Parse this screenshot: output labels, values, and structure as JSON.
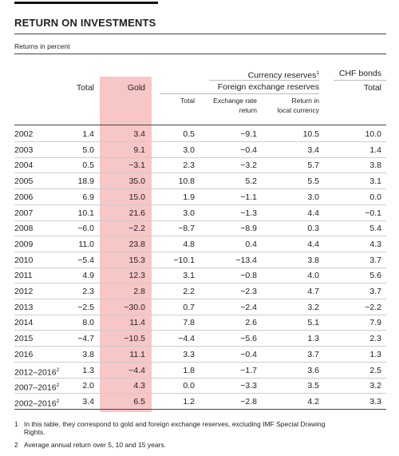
{
  "header": {
    "title": "RETURN ON INVESTMENTS",
    "subtitle": "Returns in percent"
  },
  "table": {
    "group_headers": {
      "currency_reserves": "Currency reserves",
      "currency_reserves_note": "1",
      "fx_reserves": "Foreign exchange reserves",
      "chf_bonds": "CHF bonds"
    },
    "columns": [
      [
        "Total"
      ],
      [
        "Gold"
      ],
      [
        "Total"
      ],
      [
        "Exchange rate",
        "return"
      ],
      [
        "Return in",
        "local currency"
      ],
      [
        "Total"
      ]
    ],
    "rows": [
      {
        "label": "2002",
        "values": [
          "1.4",
          "3.4",
          "0.5",
          "−9.1",
          "10.5",
          "10.0"
        ]
      },
      {
        "label": "2003",
        "values": [
          "5.0",
          "9.1",
          "3.0",
          "−0.4",
          "3.4",
          "1.4"
        ]
      },
      {
        "label": "2004",
        "values": [
          "0.5",
          "−3.1",
          "2.3",
          "−3.2",
          "5.7",
          "3.8"
        ]
      },
      {
        "label": "2005",
        "values": [
          "18.9",
          "35.0",
          "10.8",
          "5.2",
          "5.5",
          "3.1"
        ]
      },
      {
        "label": "2006",
        "values": [
          "6.9",
          "15.0",
          "1.9",
          "−1.1",
          "3.0",
          "0.0"
        ]
      },
      {
        "label": "2007",
        "values": [
          "10.1",
          "21.6",
          "3.0",
          "−1.3",
          "4.4",
          "−0.1"
        ]
      },
      {
        "label": "2008",
        "values": [
          "−6.0",
          "−2.2",
          "−8.7",
          "−8.9",
          "0.3",
          "5.4"
        ]
      },
      {
        "label": "2009",
        "values": [
          "11.0",
          "23.8",
          "4.8",
          "0.4",
          "4.4",
          "4.3"
        ]
      },
      {
        "label": "2010",
        "values": [
          "−5.4",
          "15.3",
          "−10.1",
          "−13.4",
          "3.8",
          "3.7"
        ]
      },
      {
        "label": "2011",
        "values": [
          "4.9",
          "12.3",
          "3.1",
          "−0.8",
          "4.0",
          "5.6"
        ]
      },
      {
        "label": "2012",
        "values": [
          "2.3",
          "2.8",
          "2.2",
          "−2.3",
          "4.7",
          "3.7"
        ]
      },
      {
        "label": "2013",
        "values": [
          "−2.5",
          "−30.0",
          "0.7",
          "−2.4",
          "3.2",
          "−2.2"
        ]
      },
      {
        "label": "2014",
        "values": [
          "8.0",
          "11.4",
          "7.8",
          "2.6",
          "5.1",
          "7.9"
        ]
      },
      {
        "label": "2015",
        "values": [
          "−4.7",
          "−10.5",
          "−4.4",
          "−5.6",
          "1.3",
          "2.3"
        ]
      },
      {
        "label": "2016",
        "values": [
          "3.8",
          "11.1",
          "3.3",
          "−0.4",
          "3.7",
          "1.3"
        ]
      },
      {
        "label": "2012–2016",
        "note": "2",
        "values": [
          "1.3",
          "−4.4",
          "1.8",
          "−1.7",
          "3.6",
          "2.5"
        ]
      },
      {
        "label": "2007–2016",
        "note": "2",
        "values": [
          "2.0",
          "4.3",
          "0.0",
          "−3.3",
          "3.5",
          "3.2"
        ]
      },
      {
        "label": "2002–2016",
        "note": "2",
        "values": [
          "3.4",
          "6.5",
          "1.2",
          "−2.8",
          "4.2",
          "3.3"
        ]
      }
    ]
  },
  "footnotes": [
    {
      "mark": "1",
      "text": "In this table, they correspond to gold and foreign exchange reserves, excluding IMF Special Drawing Rights."
    },
    {
      "mark": "2",
      "text": "Average annual return over 5, 10 and 15 years."
    }
  ]
}
